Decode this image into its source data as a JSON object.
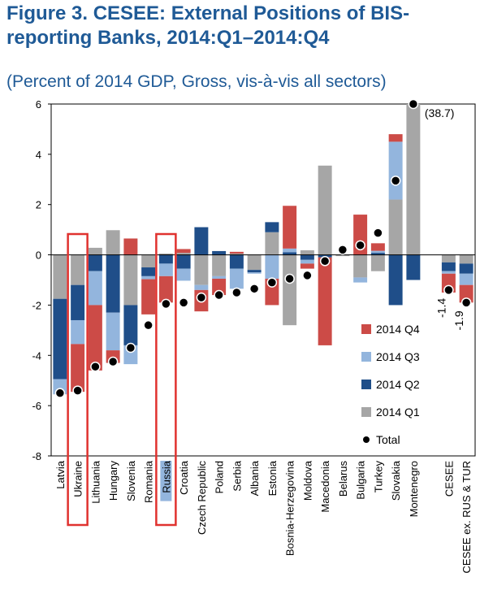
{
  "title": "Figure 3. CESEE: External Positions of BIS-reporting Banks, 2014:Q1–2014:Q4",
  "subtitle": "(Percent of 2014 GDP, Gross, vis-à-vis all sectors)",
  "colors": {
    "q4": "#cc4b47",
    "q3": "#93b5dd",
    "q2": "#1f4e89",
    "q1": "#a6a6a6",
    "total": "#000000",
    "highlight": "#e0322f",
    "russia_label_bg": "#93b5dd"
  },
  "chart_data": {
    "type": "bar",
    "stacked": true,
    "ylim": [
      -8,
      6
    ],
    "yticks": [
      -8,
      -6,
      -4,
      -2,
      0,
      2,
      4,
      6
    ],
    "categories": [
      "Latvia",
      "Ukraine",
      "Lithuania",
      "Hungary",
      "Slovenia",
      "Romania",
      "Russia",
      "Croatia",
      "Czech Republic",
      "Poland",
      "Serbia",
      "Albania",
      "Estonia",
      "Bosnia-Herzegovina",
      "Moldova",
      "Macedonia",
      "Belarus",
      "Bulgaria",
      "Turkey",
      "Slovakia",
      "Montenegro",
      "",
      "CESEE",
      "CESEE ex. RUS & TUR"
    ],
    "series": [
      {
        "name": "2014 Q1",
        "values": [
          -1.75,
          -1.2,
          0.28,
          0.98,
          -2.0,
          -0.5,
          0.05,
          0.08,
          -1.2,
          -0.85,
          0.05,
          -0.6,
          0.9,
          -2.8,
          0.18,
          3.55,
          -0.05,
          -0.9,
          -0.65,
          2.2,
          6.0,
          0,
          -0.3,
          -0.35
        ]
      },
      {
        "name": "2014 Q2",
        "values": [
          -3.2,
          -1.4,
          -0.65,
          -2.3,
          -1.6,
          -0.35,
          -0.35,
          -0.55,
          1.1,
          0.15,
          -0.55,
          -0.1,
          0.4,
          0.1,
          -0.2,
          -0.1,
          0.0,
          0.0,
          0.08,
          -2.0,
          -1.0,
          0,
          -0.35,
          -0.4
        ]
      },
      {
        "name": "2014 Q3",
        "values": [
          -0.6,
          -0.95,
          -1.35,
          -1.5,
          -0.75,
          -0.12,
          -0.5,
          -0.48,
          -0.2,
          -0.1,
          -0.8,
          -0.05,
          -0.95,
          0.15,
          -0.15,
          0.0,
          0.0,
          -0.2,
          0.08,
          2.3,
          0.0,
          0,
          -0.1,
          -0.45
        ]
      },
      {
        "name": "2014 Q4",
        "values": [
          0.0,
          -1.9,
          -2.6,
          -0.5,
          0.65,
          -1.4,
          -1.05,
          0.15,
          -0.85,
          -0.65,
          0.07,
          0.0,
          -1.05,
          1.7,
          -0.2,
          -3.5,
          0.0,
          1.6,
          0.3,
          0.3,
          0.0,
          0,
          -0.75,
          -0.7
        ]
      }
    ],
    "total": [
      -5.5,
      -5.4,
      -4.45,
      -4.25,
      -3.7,
      -2.8,
      -1.95,
      -1.9,
      -1.7,
      -1.6,
      -1.5,
      -1.35,
      -1.1,
      -0.95,
      -0.82,
      -0.25,
      0.2,
      0.38,
      0.87,
      2.95,
      38.7,
      null,
      -1.4,
      -1.9
    ],
    "annotations": [
      {
        "category": "Montenegro",
        "text": "(38.7)"
      },
      {
        "category": "CESEE",
        "text": "-1.4"
      },
      {
        "category": "CESEE ex. RUS & TUR",
        "text": "-1.9"
      }
    ],
    "highlighted": [
      "Ukraine",
      "Russia"
    ],
    "legend": {
      "placement": "bottom-right",
      "items": [
        {
          "label": "2014 Q4",
          "key": "q4",
          "marker": "square"
        },
        {
          "label": "2014 Q3",
          "key": "q3",
          "marker": "square"
        },
        {
          "label": "2014 Q2",
          "key": "q2",
          "marker": "square"
        },
        {
          "label": "2014 Q1",
          "key": "q1",
          "marker": "square"
        },
        {
          "label": "Total",
          "key": "total",
          "marker": "dot"
        }
      ]
    }
  }
}
